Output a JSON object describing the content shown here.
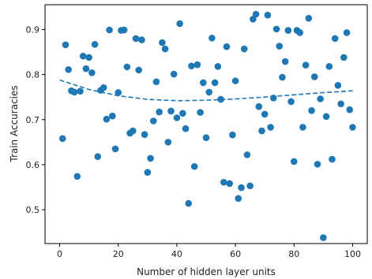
{
  "chart_data": {
    "type": "scatter",
    "xlabel": "Number of hidden layer units",
    "ylabel": "Train Accuracies",
    "xlim": [
      -5,
      105
    ],
    "ylim": [
      0.425,
      0.955
    ],
    "x_ticks": [
      0,
      20,
      40,
      60,
      80,
      100
    ],
    "y_ticks": [
      0.5,
      0.6,
      0.7,
      0.8,
      0.9
    ],
    "grid": false,
    "legend": "none",
    "colors": {
      "points": "#1f77b4",
      "trend": "#1f77b4"
    },
    "series": [
      {
        "type": "scatter",
        "points": [
          [
            1,
            0.658
          ],
          [
            2,
            0.866
          ],
          [
            3,
            0.811
          ],
          [
            4,
            0.764
          ],
          [
            5,
            0.761
          ],
          [
            6,
            0.574
          ],
          [
            7,
            0.763
          ],
          [
            8,
            0.841
          ],
          [
            9,
            0.813
          ],
          [
            10,
            0.838
          ],
          [
            11,
            0.804
          ],
          [
            12,
            0.867
          ],
          [
            13,
            0.618
          ],
          [
            14,
            0.765
          ],
          [
            15,
            0.771
          ],
          [
            16,
            0.701
          ],
          [
            17,
            0.899
          ],
          [
            18,
            0.708
          ],
          [
            19,
            0.635
          ],
          [
            20,
            0.76
          ],
          [
            21,
            0.898
          ],
          [
            22,
            0.899
          ],
          [
            23,
            0.817
          ],
          [
            24,
            0.67
          ],
          [
            25,
            0.675
          ],
          [
            26,
            0.88
          ],
          [
            27,
            0.81
          ],
          [
            28,
            0.877
          ],
          [
            29,
            0.667
          ],
          [
            30,
            0.583
          ],
          [
            31,
            0.614
          ],
          [
            32,
            0.697
          ],
          [
            33,
            0.784
          ],
          [
            34,
            0.717
          ],
          [
            35,
            0.871
          ],
          [
            36,
            0.857
          ],
          [
            37,
            0.65
          ],
          [
            38,
            0.719
          ],
          [
            39,
            0.801
          ],
          [
            40,
            0.704
          ],
          [
            41,
            0.913
          ],
          [
            42,
            0.714
          ],
          [
            43,
            0.68
          ],
          [
            44,
            0.514
          ],
          [
            45,
            0.819
          ],
          [
            46,
            0.596
          ],
          [
            47,
            0.822
          ],
          [
            48,
            0.716
          ],
          [
            49,
            0.782
          ],
          [
            50,
            0.66
          ],
          [
            51,
            0.761
          ],
          [
            52,
            0.881
          ],
          [
            53,
            0.782
          ],
          [
            54,
            0.818
          ],
          [
            55,
            0.745
          ],
          [
            56,
            0.561
          ],
          [
            57,
            0.862
          ],
          [
            58,
            0.558
          ],
          [
            59,
            0.666
          ],
          [
            60,
            0.786
          ],
          [
            61,
            0.525
          ],
          [
            62,
            0.549
          ],
          [
            63,
            0.857
          ],
          [
            64,
            0.622
          ],
          [
            65,
            0.553
          ],
          [
            66,
            0.923
          ],
          [
            67,
            0.934
          ],
          [
            68,
            0.729
          ],
          [
            69,
            0.675
          ],
          [
            70,
            0.712
          ],
          [
            71,
            0.932
          ],
          [
            72,
            0.683
          ],
          [
            73,
            0.748
          ],
          [
            74,
            0.901
          ],
          [
            75,
            0.863
          ],
          [
            76,
            0.794
          ],
          [
            77,
            0.829
          ],
          [
            78,
            0.898
          ],
          [
            79,
            0.74
          ],
          [
            80,
            0.607
          ],
          [
            81,
            0.898
          ],
          [
            82,
            0.893
          ],
          [
            83,
            0.683
          ],
          [
            84,
            0.821
          ],
          [
            85,
            0.925
          ],
          [
            86,
            0.72
          ],
          [
            87,
            0.795
          ],
          [
            88,
            0.601
          ],
          [
            89,
            0.746
          ],
          [
            90,
            0.438
          ],
          [
            91,
            0.707
          ],
          [
            92,
            0.818
          ],
          [
            93,
            0.612
          ],
          [
            94,
            0.88
          ],
          [
            95,
            0.776
          ],
          [
            96,
            0.735
          ],
          [
            97,
            0.838
          ],
          [
            98,
            0.893
          ],
          [
            99,
            0.722
          ],
          [
            100,
            0.683
          ]
        ]
      },
      {
        "type": "line",
        "style": "dashed",
        "x": [
          0,
          10,
          20,
          30,
          40,
          50,
          60,
          70,
          80,
          90,
          100
        ],
        "y": [
          0.788,
          0.767,
          0.753,
          0.745,
          0.742,
          0.743,
          0.746,
          0.75,
          0.755,
          0.76,
          0.764
        ]
      }
    ]
  }
}
